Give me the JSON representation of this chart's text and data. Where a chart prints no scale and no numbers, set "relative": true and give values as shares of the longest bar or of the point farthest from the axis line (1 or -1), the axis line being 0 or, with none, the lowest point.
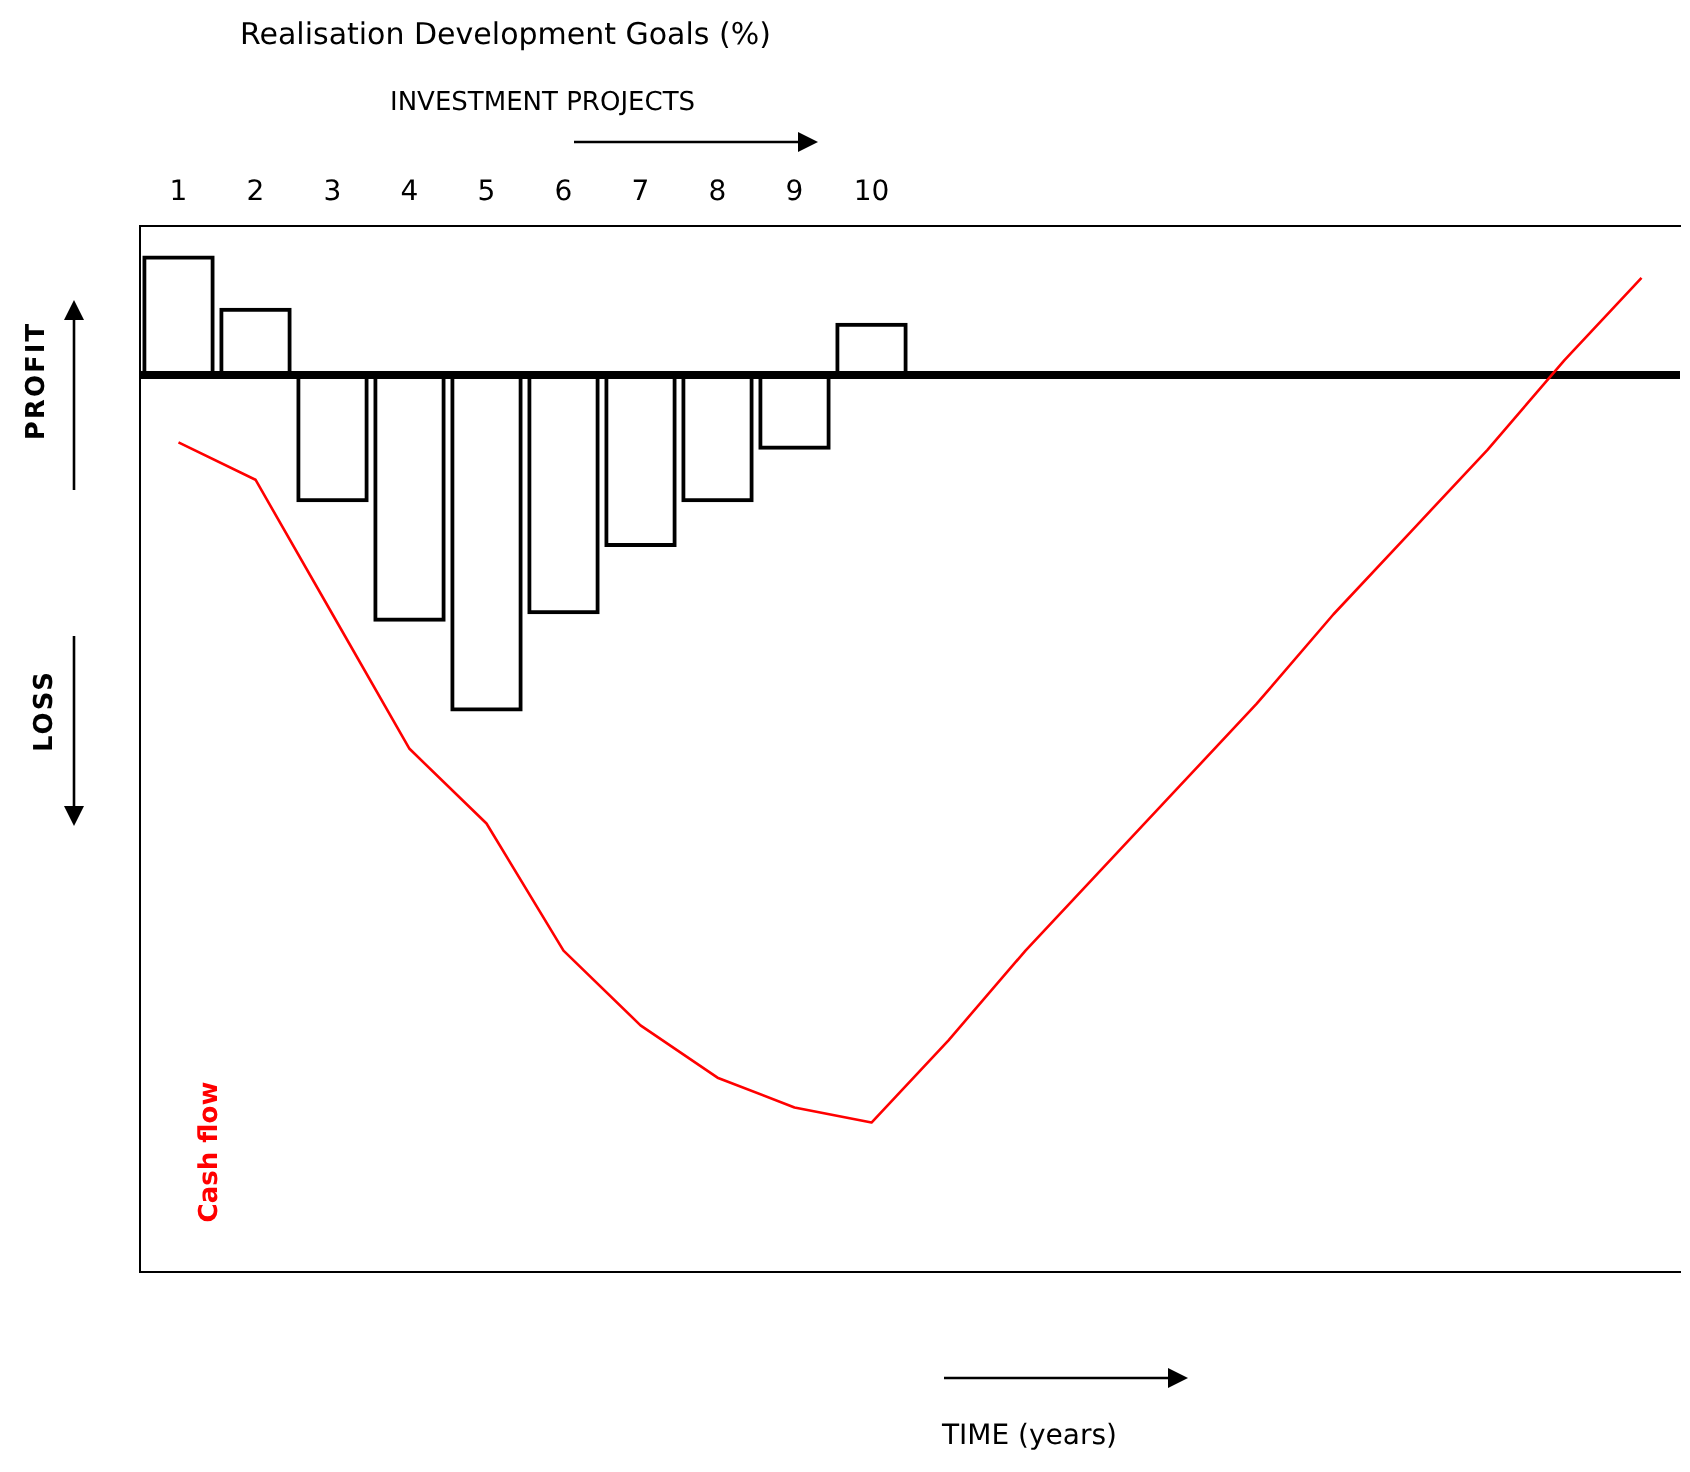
{
  "chart_data": {
    "type": "bar",
    "title": "Realisation Development Goals (%)",
    "subtitle": "INVESTMENT PROJECTS",
    "annotations": [
      "PROFIT",
      "LOSS",
      "TIME (years)"
    ],
    "relative": true,
    "legend": false,
    "grid": false,
    "tick_labels": "x",
    "marker": "none",
    "categories": [
      "1",
      "2",
      "3",
      "4",
      "5",
      "6",
      "7",
      "8",
      "9",
      "10",
      null,
      null,
      null,
      null,
      null,
      null,
      null,
      null,
      null,
      null
    ],
    "series": [
      {
        "color": "#000000",
        "values": [
          0.16,
          0.09,
          -0.17,
          -0.33,
          -0.45,
          -0.32,
          -0.23,
          -0.17,
          -0.1,
          0.07,
          null,
          null,
          null,
          null,
          null,
          null,
          null,
          null,
          null,
          null
        ]
      },
      {
        "type": "line",
        "name": "Cash flow",
        "color": "#ff0000",
        "values": [
          -0.09,
          -0.14,
          -0.32,
          -0.5,
          -0.6,
          -0.77,
          -0.87,
          -0.94,
          -0.98,
          -1,
          -0.89,
          -0.77,
          -0.66,
          -0.55,
          -0.44,
          -0.32,
          -0.21,
          -0.1,
          0.02,
          0.13
        ]
      }
    ]
  }
}
